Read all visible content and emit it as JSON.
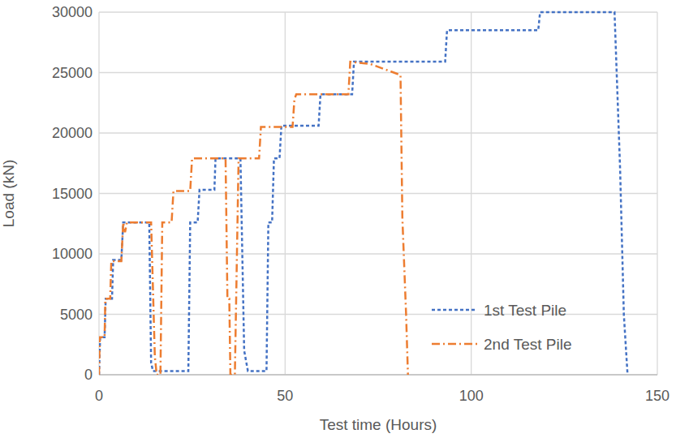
{
  "chart_data": {
    "type": "line",
    "x_label": "Test time (Hours)",
    "y_label": "Load (kN)",
    "xlim": [
      0,
      150
    ],
    "xticks": [
      0,
      50,
      100,
      150
    ],
    "ylim": [
      0,
      30000
    ],
    "yticks": [
      0,
      5000,
      10000,
      15000,
      20000,
      25000,
      30000
    ],
    "grid": true,
    "legend": "lower right",
    "series": [
      {
        "name": "1st Test Pile",
        "color": "#4472c4",
        "line_style": "dashed",
        "x": [
          0,
          0.3,
          1.5,
          1.8,
          3.5,
          3.8,
          6,
          6.5,
          13.5,
          14,
          14.5,
          23.8,
          24,
          24.5,
          26.5,
          27,
          31,
          31.3,
          38,
          39,
          40,
          45,
          45.5,
          46.5,
          47,
          48.5,
          49,
          59,
          59.5,
          68,
          68.5,
          93,
          93.5,
          118,
          118.5,
          138.5,
          140,
          141,
          142
        ],
        "values": [
          0,
          3100,
          3100,
          6300,
          6300,
          9500,
          9500,
          12600,
          12600,
          1000,
          300,
          300,
          300,
          12600,
          12600,
          15300,
          15300,
          17900,
          17900,
          2000,
          300,
          300,
          12600,
          12600,
          17900,
          17900,
          20600,
          20600,
          23200,
          23200,
          25900,
          25900,
          28500,
          28500,
          30000,
          30000,
          17000,
          5000,
          0
        ]
      },
      {
        "name": "2nd Test Pile",
        "color": "#ed7d31",
        "line_style": "dashdot",
        "x": [
          0,
          0.2,
          1.5,
          1.7,
          3,
          3.3,
          6,
          6.5,
          7,
          7.5,
          14,
          15,
          15.5,
          16.5,
          17,
          19.5,
          20,
          24.5,
          25,
          34,
          34.5,
          35,
          35.3,
          36.5,
          37.5,
          43,
          43.5,
          52,
          52.5,
          53,
          67,
          67.5,
          73,
          81,
          81.5,
          82.5,
          83
        ],
        "values": [
          0,
          3100,
          3100,
          6300,
          6300,
          9400,
          9400,
          12600,
          11800,
          12600,
          12600,
          1500,
          0,
          0,
          12600,
          12600,
          15200,
          15200,
          17900,
          17900,
          6300,
          6300,
          0,
          0,
          17900,
          17900,
          20500,
          20500,
          22800,
          23200,
          23200,
          25900,
          25700,
          24800,
          13000,
          5000,
          0
        ]
      }
    ]
  }
}
